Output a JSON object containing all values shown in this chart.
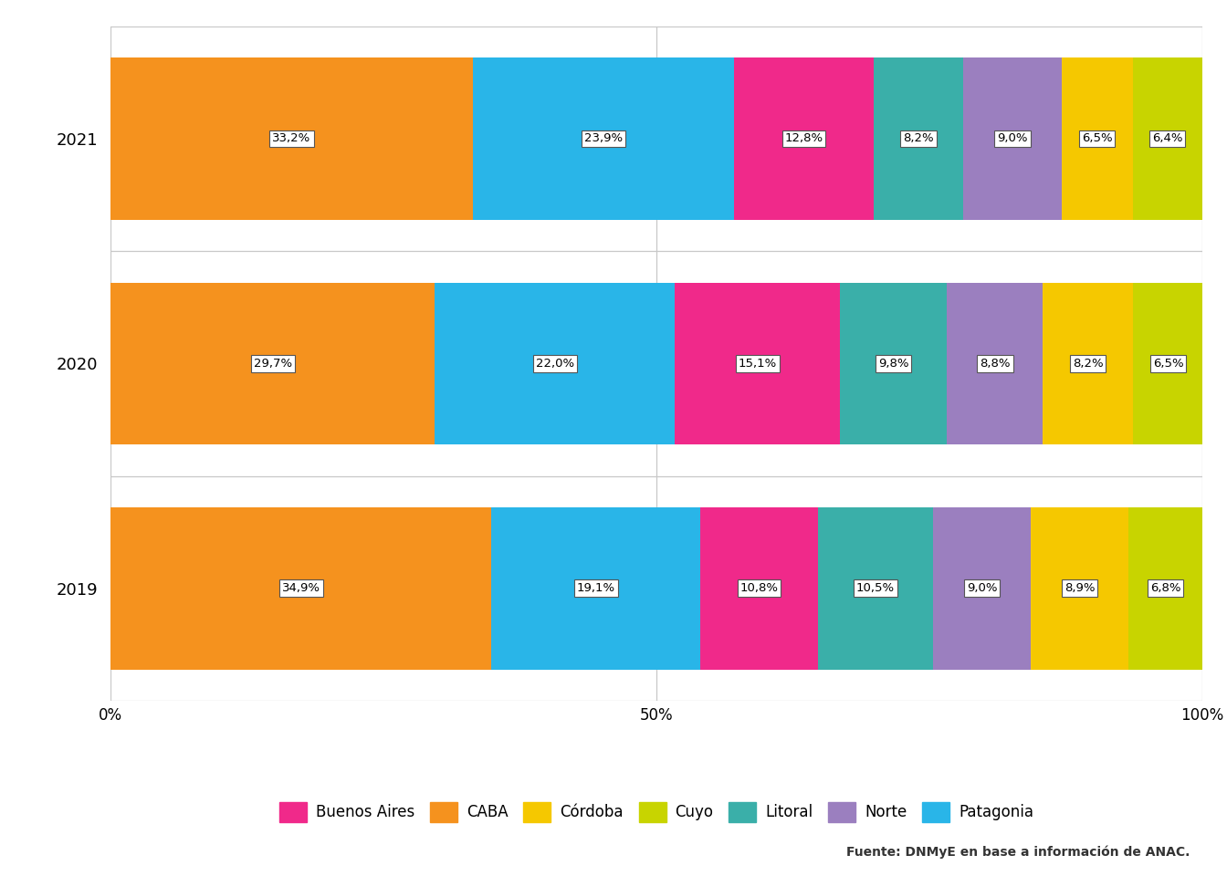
{
  "years": [
    "2019",
    "2020",
    "2021"
  ],
  "categories": [
    "CABA",
    "Patagonia",
    "Buenos Aires",
    "Litoral",
    "Norte",
    "Córdoba",
    "Cuyo"
  ],
  "colors": {
    "CABA": "#F5921E",
    "Patagonia": "#29B5E8",
    "Buenos Aires": "#F0298A",
    "Litoral": "#3AAFA9",
    "Norte": "#9B7FBF",
    "Córdoba": "#F5C800",
    "Cuyo": "#C8D400"
  },
  "data": {
    "2021": {
      "CABA": 33.2,
      "Patagonia": 23.9,
      "Buenos Aires": 12.8,
      "Litoral": 8.2,
      "Norte": 9.0,
      "Córdoba": 6.5,
      "Cuyo": 6.4
    },
    "2020": {
      "CABA": 29.7,
      "Patagonia": 22.0,
      "Buenos Aires": 15.1,
      "Litoral": 9.8,
      "Norte": 8.8,
      "Córdoba": 8.2,
      "Cuyo": 6.5
    },
    "2019": {
      "CABA": 34.9,
      "Patagonia": 19.1,
      "Buenos Aires": 10.8,
      "Litoral": 10.5,
      "Norte": 9.0,
      "Córdoba": 8.9,
      "Cuyo": 6.8
    }
  },
  "label_map": {
    "2021": {
      "CABA": "33,2%",
      "Patagonia": "23,9%",
      "Buenos Aires": "12,8%",
      "Litoral": "8,2%",
      "Norte": "9,0%",
      "Córdoba": "6,5%",
      "Cuyo": "6,4%"
    },
    "2020": {
      "CABA": "29,7%",
      "Patagonia": "22,0%",
      "Buenos Aires": "15,1%",
      "Litoral": "9,8%",
      "Norte": "8,8%",
      "Córdoba": "8,2%",
      "Cuyo": "6,5%"
    },
    "2019": {
      "CABA": "34,9%",
      "Patagonia": "19,1%",
      "Buenos Aires": "10,8%",
      "Litoral": "10,5%",
      "Norte": "9,0%",
      "Córdoba": "8,9%",
      "Cuyo": "6,8%"
    }
  },
  "legend_order": [
    "Buenos Aires",
    "CABA",
    "Córdoba",
    "Cuyo",
    "Litoral",
    "Norte",
    "Patagonia"
  ],
  "source_text": "Fuente: DNMyE en base a información de ANAC.",
  "background_color": "#FFFFFF",
  "grid_color": "#C8C8C8",
  "bar_height": 0.72
}
